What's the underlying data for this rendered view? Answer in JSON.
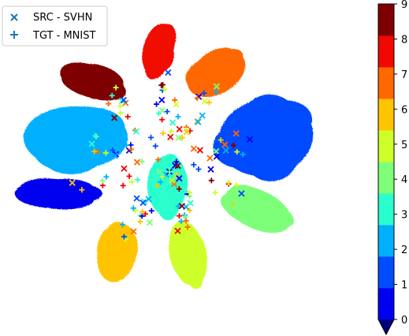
{
  "chart_data": {
    "type": "scatter",
    "title": "",
    "xlabel": "",
    "ylabel": "",
    "legend": {
      "placement": "top-left",
      "entries": [
        {
          "label": "SRC - SVHN",
          "marker": "x",
          "color": "#1f77b4"
        },
        {
          "label": "TGT - MNIST",
          "marker": "+",
          "color": "#1f77b4"
        }
      ]
    },
    "axes_visible": false,
    "grid": false,
    "colormap": "jet",
    "colorbar": {
      "range": [
        0,
        9
      ],
      "ticks": [
        "0",
        "1",
        "2",
        "3",
        "4",
        "5",
        "6",
        "7",
        "8",
        "9"
      ],
      "extend": "min",
      "colors": [
        "#00007f",
        "#0000f1",
        "#004cff",
        "#00b0ff",
        "#29ffce",
        "#7dff7a",
        "#ceff29",
        "#ffc400",
        "#ff6800",
        "#f10800",
        "#7f0000"
      ]
    },
    "clusters": [
      {
        "label": 0,
        "center": [
          -0.72,
          -0.15
        ],
        "size": 0.38
      },
      {
        "label": 1,
        "center": [
          0.55,
          0.2
        ],
        "size": 0.65
      },
      {
        "label": 2,
        "center": [
          -0.6,
          0.2
        ],
        "size": 0.6
      },
      {
        "label": 3,
        "center": [
          -0.05,
          -0.1
        ],
        "size": 0.45
      },
      {
        "label": 4,
        "center": [
          0.5,
          -0.25
        ],
        "size": 0.45
      },
      {
        "label": 5,
        "center": [
          0.08,
          -0.52
        ],
        "size": 0.45
      },
      {
        "label": 6,
        "center": [
          -0.35,
          -0.52
        ],
        "size": 0.45
      },
      {
        "label": 7,
        "center": [
          0.25,
          0.6
        ],
        "size": 0.45
      },
      {
        "label": 8,
        "center": [
          -0.1,
          0.75
        ],
        "size": 0.4
      },
      {
        "label": 9,
        "center": [
          -0.5,
          0.55
        ],
        "size": 0.42
      }
    ]
  }
}
